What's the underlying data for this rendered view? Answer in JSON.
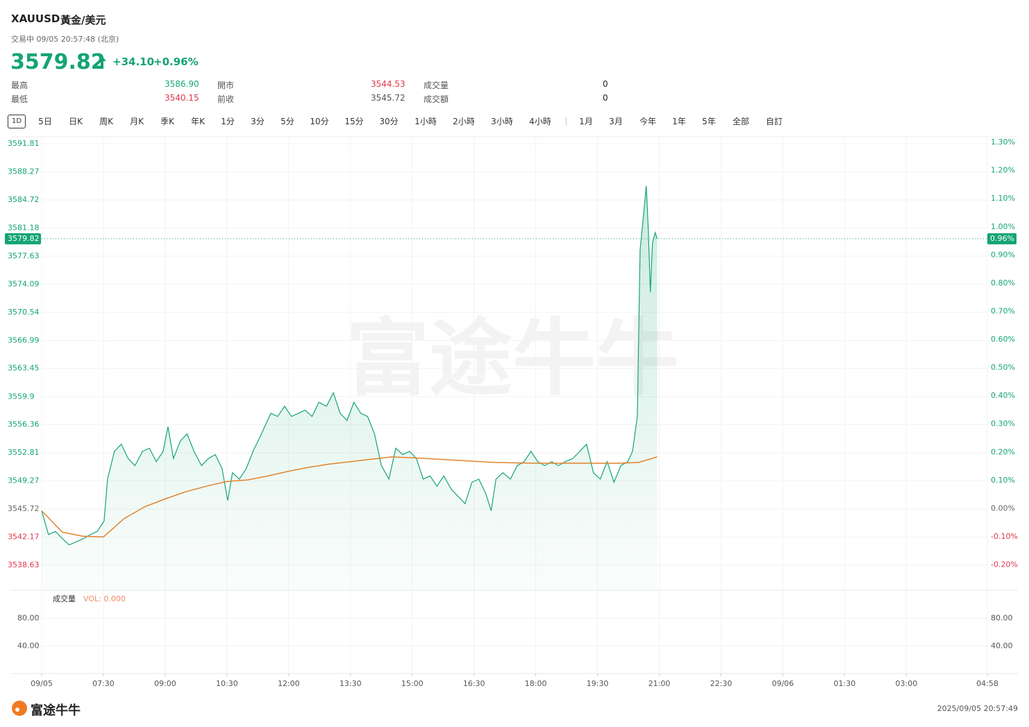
{
  "header": {
    "symbol": "XAUUSD",
    "name": "黃金/美元",
    "status": "交易中 09/05 20:57:48 (北京)",
    "price": "3579.82",
    "change": "+34.10",
    "change_pct": "+0.96%"
  },
  "stats": {
    "rows": [
      [
        "最高",
        "3586.90",
        "開市",
        "3544.53",
        "成交量",
        "0"
      ],
      [
        "最低",
        "3540.15",
        "前收",
        "3545.72",
        "成交額",
        "0"
      ]
    ]
  },
  "tabs": [
    "1D",
    "5日",
    "日K",
    "周K",
    "月K",
    "季K",
    "年K",
    "1分",
    "3分",
    "5分",
    "10分",
    "15分",
    "30分",
    "1小時",
    "2小時",
    "3小時",
    "4小時",
    "1月",
    "3月",
    "今年",
    "1年",
    "5年",
    "全部",
    "自訂"
  ],
  "watermark": "富途牛牛",
  "chart_data": {
    "type": "line",
    "xlim": [
      "09/05 06:00",
      "09/06 04:58"
    ],
    "xticks": [
      {
        "value": "09/05 06:00",
        "label": "09/05"
      },
      {
        "value": "09/05 07:30",
        "label": "07:30"
      },
      {
        "value": "09/05 09:00",
        "label": "09:00"
      },
      {
        "value": "09/05 10:30",
        "label": "10:30"
      },
      {
        "value": "09/05 12:00",
        "label": "12:00"
      },
      {
        "value": "09/05 13:30",
        "label": "13:30"
      },
      {
        "value": "09/05 15:00",
        "label": "15:00"
      },
      {
        "value": "09/05 16:30",
        "label": "16:30"
      },
      {
        "value": "09/05 18:00",
        "label": "18:00"
      },
      {
        "value": "09/05 19:30",
        "label": "19:30"
      },
      {
        "value": "09/05 21:00",
        "label": "21:00"
      },
      {
        "value": "09/05 22:30",
        "label": "22:30"
      },
      {
        "value": "09/06 00:00",
        "label": "09/06"
      },
      {
        "value": "09/06 01:30",
        "label": "01:30"
      },
      {
        "value": "09/06 03:00",
        "label": "03:00"
      },
      {
        "value": "09/06 04:58",
        "label": "04:58"
      }
    ],
    "ylim": [
      3535.48,
      3592.69
    ],
    "yticks": [
      3591.81,
      3588.27,
      3584.72,
      3581.18,
      3577.63,
      3574.09,
      3570.54,
      3566.99,
      3563.45,
      3559.9,
      3556.36,
      3552.81,
      3549.27,
      3545.72,
      3542.17,
      3538.63
    ],
    "y2lim": [
      -0.29,
      1.32
    ],
    "y2ticks": [
      {
        "value": 1.3,
        "label": "1.30%"
      },
      {
        "value": 1.2,
        "label": "1.20%"
      },
      {
        "value": 1.1,
        "label": "1.10%"
      },
      {
        "value": 1.0,
        "label": "1.00%"
      },
      {
        "value": 0.9,
        "label": "0.90%"
      },
      {
        "value": 0.8,
        "label": "0.80%"
      },
      {
        "value": 0.7,
        "label": "0.70%"
      },
      {
        "value": 0.6,
        "label": "0.60%"
      },
      {
        "value": 0.5,
        "label": "0.50%"
      },
      {
        "value": 0.4,
        "label": "0.40%"
      },
      {
        "value": 0.3,
        "label": "0.30%"
      },
      {
        "value": 0.2,
        "label": "0.20%"
      },
      {
        "value": 0.1,
        "label": "0.10%"
      },
      {
        "value": 0.0,
        "label": "0.00%"
      },
      {
        "value": -0.1,
        "label": "-0.10%"
      },
      {
        "value": -0.2,
        "label": "-0.20%"
      }
    ],
    "grid": true,
    "current_price": 3579.82,
    "current_pct_label": "0.96%",
    "series": [
      {
        "color": "#14a474",
        "x": [
          "09/05 06:00",
          "09/05 06:10",
          "09/05 06:20",
          "09/05 06:30",
          "09/05 06:40",
          "09/05 06:51",
          "09/05 07:01",
          "09/05 07:11",
          "09/05 07:21",
          "09/05 07:31",
          "09/05 07:36",
          "09/05 07:46",
          "09/05 07:56",
          "09/05 08:06",
          "09/05 08:16",
          "09/05 08:27",
          "09/05 08:37",
          "09/05 08:47",
          "09/05 08:57",
          "09/05 09:04",
          "09/05 09:12",
          "09/05 09:22",
          "09/05 09:32",
          "09/05 09:42",
          "09/05 09:53",
          "09/05 10:03",
          "09/05 10:13",
          "09/05 10:23",
          "09/05 10:31",
          "09/05 10:38",
          "09/05 10:48",
          "09/05 10:58",
          "09/05 11:08",
          "09/05 11:18",
          "09/05 11:34",
          "09/05 11:44",
          "09/05 11:54",
          "09/05 12:04",
          "09/05 12:14",
          "09/05 12:24",
          "09/05 12:34",
          "09/05 12:44",
          "09/05 12:55",
          "09/05 13:05",
          "09/05 13:15",
          "09/05 13:25",
          "09/05 13:35",
          "09/05 13:45",
          "09/05 13:55",
          "09/05 14:05",
          "09/05 14:15",
          "09/05 14:26",
          "09/05 14:36",
          "09/05 14:46",
          "09/05 14:56",
          "09/05 15:06",
          "09/05 15:16",
          "09/05 15:26",
          "09/05 15:36",
          "09/05 15:46",
          "09/05 15:57",
          "09/05 16:07",
          "09/05 16:17",
          "09/05 16:27",
          "09/05 16:37",
          "09/05 16:47",
          "09/05 16:55",
          "09/05 17:02",
          "09/05 17:12",
          "09/05 17:23",
          "09/05 17:33",
          "09/05 17:43",
          "09/05 17:53",
          "09/05 18:03",
          "09/05 18:13",
          "09/05 18:23",
          "09/05 18:33",
          "09/05 18:43",
          "09/05 18:54",
          "09/05 19:04",
          "09/05 19:14",
          "09/05 19:24",
          "09/05 19:34",
          "09/05 19:44",
          "09/05 19:54",
          "09/05 20:04",
          "09/05 20:14",
          "09/05 20:21",
          "09/05 20:28",
          "09/05 20:32",
          "09/05 20:38",
          "09/05 20:41",
          "09/05 20:44",
          "09/05 20:47",
          "09/05 20:50",
          "09/05 20:54",
          "09/05 20:57"
        ],
        "values": [
          3545.5,
          3542.5,
          3542.9,
          3542.0,
          3541.2,
          3541.6,
          3542.0,
          3542.5,
          3542.9,
          3544.2,
          3549.5,
          3553.0,
          3553.9,
          3552.1,
          3551.2,
          3553.0,
          3553.4,
          3551.7,
          3553.0,
          3556.1,
          3552.1,
          3554.3,
          3555.2,
          3553.0,
          3551.2,
          3552.1,
          3552.6,
          3550.8,
          3546.8,
          3550.3,
          3549.5,
          3550.8,
          3553.0,
          3554.8,
          3557.8,
          3557.4,
          3558.7,
          3557.4,
          3557.8,
          3558.2,
          3557.4,
          3559.2,
          3558.7,
          3560.4,
          3557.8,
          3556.9,
          3559.2,
          3557.8,
          3557.4,
          3555.2,
          3551.2,
          3549.5,
          3553.4,
          3552.6,
          3553.0,
          3552.1,
          3549.5,
          3549.9,
          3548.6,
          3549.9,
          3548.2,
          3547.3,
          3546.4,
          3549.1,
          3549.5,
          3547.7,
          3545.5,
          3549.5,
          3550.3,
          3549.5,
          3551.2,
          3551.7,
          3553.0,
          3551.7,
          3551.2,
          3551.7,
          3551.2,
          3551.7,
          3552.1,
          3553.0,
          3553.9,
          3550.3,
          3549.5,
          3551.7,
          3549.1,
          3551.2,
          3551.7,
          3553.0,
          3557.4,
          3578.4,
          3583.7,
          3586.5,
          3581.0,
          3573.1,
          3579.3,
          3580.6,
          3579.82
        ]
      },
      {
        "color": "#e2832b",
        "x": [
          "09/05 06:00",
          "09/05 06:30",
          "09/05 07:00",
          "09/05 07:30",
          "09/05 08:00",
          "09/05 08:30",
          "09/05 09:00",
          "09/05 09:30",
          "09/05 10:00",
          "09/05 10:30",
          "09/05 11:00",
          "09/05 11:30",
          "09/05 12:00",
          "09/05 12:30",
          "09/05 13:00",
          "09/05 13:30",
          "09/05 14:00",
          "09/05 14:30",
          "09/05 15:00",
          "09/05 16:00",
          "09/05 17:00",
          "09/05 18:00",
          "09/05 19:00",
          "09/05 20:00",
          "09/05 20:30",
          "09/05 20:57"
        ],
        "values": [
          3545.5,
          3542.8,
          3542.3,
          3542.2,
          3544.5,
          3546.0,
          3547.0,
          3547.9,
          3548.6,
          3549.2,
          3549.4,
          3549.9,
          3550.5,
          3551.0,
          3551.4,
          3551.7,
          3552.0,
          3552.3,
          3552.2,
          3551.9,
          3551.6,
          3551.5,
          3551.5,
          3551.5,
          3551.6,
          3552.3
        ]
      }
    ],
    "volume_pane": {
      "title": "成交量",
      "vol_label": "VOL: 0.000",
      "ylim": [
        0,
        121
      ],
      "yticks": [
        {
          "value": 80,
          "label": "80.00"
        },
        {
          "value": 40,
          "label": "40.00"
        }
      ]
    }
  },
  "footer": {
    "brand": "富途牛牛",
    "timestamp": "2025/09/05 20:57:49"
  }
}
